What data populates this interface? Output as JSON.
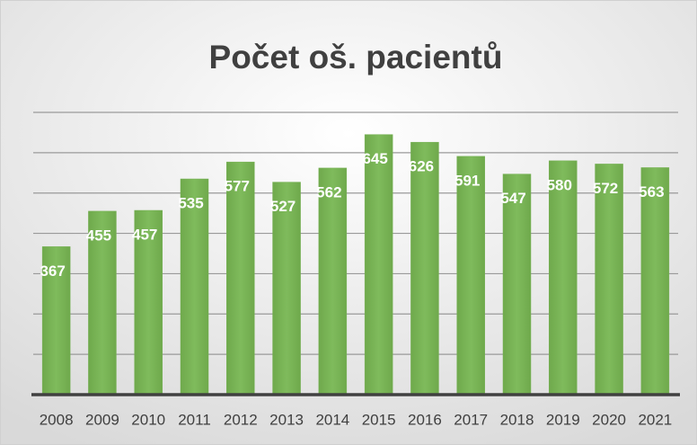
{
  "chart_data": {
    "type": "bar",
    "title": "Počet oš. pacientů",
    "categories": [
      "2008",
      "2009",
      "2010",
      "2011",
      "2012",
      "2013",
      "2014",
      "2015",
      "2016",
      "2017",
      "2018",
      "2019",
      "2020",
      "2021"
    ],
    "values": [
      367,
      455,
      457,
      535,
      577,
      527,
      562,
      645,
      626,
      591,
      547,
      580,
      572,
      563
    ],
    "color": "#77b255",
    "ylim": [
      0,
      700
    ],
    "yticks": [
      0,
      100,
      200,
      300,
      400,
      500,
      600,
      700
    ],
    "grid": true
  }
}
